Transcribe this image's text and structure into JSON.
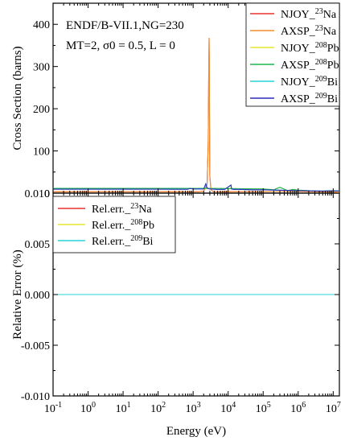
{
  "chart_data": [
    {
      "type": "line",
      "annotation_lines": [
        "ENDF/B-VII.1,NG=230",
        "MT=2, σ0 = 0.5, L = 0"
      ],
      "ylabel": "Cross Section (barns)",
      "ylim": [
        0,
        450
      ],
      "yticks": [
        "0",
        "100",
        "200",
        "300",
        "400"
      ],
      "x_scale": "log",
      "xlim": [
        0.1,
        15000000
      ],
      "grid": false,
      "legend_position": "top-right",
      "series": [
        {
          "name": "NJOY_23Na",
          "label_main": "NJOY_",
          "label_sup": "23",
          "label_tail": "Na",
          "color": "#e8302e",
          "x": [
            0.1,
            1,
            10,
            100,
            1000,
            1500,
            2000,
            2500,
            2700,
            2800,
            2850,
            2900,
            2950,
            3000,
            3200,
            3500,
            4000,
            6000,
            10000,
            30000,
            100000,
            300000,
            1000000,
            3000000,
            10000000,
            15000000
          ],
          "y": [
            3.2,
            3.2,
            3.2,
            3.2,
            3.3,
            3.5,
            5,
            20,
            120,
            300,
            368,
            300,
            150,
            40,
            10,
            5,
            3.4,
            3.3,
            3.4,
            3.5,
            3.6,
            3.8,
            4,
            3.5,
            2.5,
            2
          ]
        },
        {
          "name": "AXSP_23Na",
          "label_main": "AXSP_",
          "label_sup": "23",
          "label_tail": "Na",
          "color": "#f28e2b",
          "x": [
            0.1,
            1,
            10,
            100,
            1000,
            1500,
            2000,
            2500,
            2700,
            2800,
            2850,
            2900,
            2950,
            3000,
            3200,
            3500,
            4000,
            6000,
            10000,
            30000,
            100000,
            300000,
            1000000,
            3000000,
            10000000,
            15000000
          ],
          "y": [
            3.2,
            3.2,
            3.2,
            3.2,
            3.3,
            3.5,
            5,
            20,
            120,
            300,
            368,
            300,
            150,
            40,
            10,
            5,
            3.4,
            3.3,
            3.4,
            3.5,
            3.6,
            3.8,
            4,
            3.5,
            2.5,
            2
          ]
        },
        {
          "name": "NJOY_208Pb",
          "label_main": "NJOY_",
          "label_sup": "208",
          "label_tail": "Pb",
          "color": "#e6e62e",
          "x": [
            0.1,
            1,
            10,
            100,
            1000,
            2000,
            3000,
            5000,
            10000,
            30000,
            100000,
            200000,
            300000,
            500000,
            700000,
            1000000,
            2000000,
            3000000,
            5000000,
            10000000,
            15000000
          ],
          "y": [
            11.4,
            11.4,
            11.4,
            11.4,
            11.3,
            11.2,
            11,
            11,
            10.9,
            10.5,
            10,
            8,
            14,
            6,
            9,
            7,
            6,
            5,
            4.8,
            5.5,
            5
          ]
        },
        {
          "name": "AXSP_208Pb",
          "label_main": "AXSP_",
          "label_sup": "208",
          "label_tail": "Pb",
          "color": "#1fb84b",
          "x": [
            0.1,
            1,
            10,
            100,
            1000,
            2000,
            3000,
            5000,
            10000,
            30000,
            100000,
            200000,
            300000,
            500000,
            700000,
            1000000,
            2000000,
            3000000,
            5000000,
            10000000,
            15000000
          ],
          "y": [
            11.4,
            11.4,
            11.4,
            11.4,
            11.3,
            11.2,
            11,
            11,
            10.9,
            10.5,
            10,
            8,
            14,
            6,
            9,
            7,
            6,
            5,
            4.8,
            5.5,
            5
          ]
        },
        {
          "name": "NJOY_209Bi",
          "label_main": "NJOY_",
          "label_sup": "209",
          "label_tail": "Bi",
          "color": "#27d3d9",
          "x": [
            0.1,
            1,
            10,
            100,
            700,
            800,
            1000,
            2000,
            2300,
            2500,
            3000,
            5000,
            8000,
            12000,
            12500,
            14000,
            20000,
            50000,
            100000,
            1000000,
            5000000,
            10000000,
            15000000
          ],
          "y": [
            9.3,
            9.3,
            9.3,
            9.3,
            9.2,
            11,
            10,
            10,
            22,
            12,
            10,
            9,
            9,
            19,
            10,
            9,
            9,
            8,
            8,
            6,
            5,
            5.5,
            5.2
          ]
        },
        {
          "name": "AXSP_209Bi",
          "label_main": "AXSP_",
          "label_sup": "209",
          "label_tail": "Bi",
          "color": "#2d2dbe",
          "x": [
            0.1,
            1,
            10,
            100,
            700,
            800,
            1000,
            2000,
            2300,
            2500,
            3000,
            5000,
            8000,
            12000,
            12500,
            14000,
            20000,
            50000,
            100000,
            1000000,
            5000000,
            10000000,
            15000000
          ],
          "y": [
            9.3,
            9.3,
            9.3,
            9.3,
            9.2,
            11,
            10,
            10,
            22,
            12,
            10,
            9,
            9,
            19,
            10,
            9,
            9,
            8,
            8,
            6,
            5,
            5.5,
            5.2
          ]
        }
      ]
    },
    {
      "type": "line",
      "xlabel": "Energy (eV)",
      "ylabel": "Relative Error (%)",
      "ylim": [
        -0.01,
        0.01
      ],
      "yticks": [
        "-0.010",
        "-0.005",
        "0.000",
        "0.005",
        "0.010"
      ],
      "x_scale": "log",
      "xlim": [
        0.1,
        15000000
      ],
      "xticks": [
        {
          "base": "10",
          "exp": "-1"
        },
        {
          "base": "10",
          "exp": "0"
        },
        {
          "base": "10",
          "exp": "1"
        },
        {
          "base": "10",
          "exp": "2"
        },
        {
          "base": "10",
          "exp": "3"
        },
        {
          "base": "10",
          "exp": "4"
        },
        {
          "base": "10",
          "exp": "5"
        },
        {
          "base": "10",
          "exp": "6"
        },
        {
          "base": "10",
          "exp": "7"
        }
      ],
      "grid": false,
      "legend_position": "top-left",
      "series": [
        {
          "name": "Rel.err._23Na",
          "label_main": "Rel.err._",
          "label_sup": "23",
          "label_tail": "Na",
          "color": "#e8302e",
          "x": [
            0.1,
            1,
            10,
            100,
            1000,
            10000,
            100000,
            1000000,
            10000000,
            15000000
          ],
          "y": [
            0,
            0,
            0,
            0,
            0,
            0,
            0,
            0,
            0,
            0
          ]
        },
        {
          "name": "Rel.err._208Pb",
          "label_main": "Rel.err._",
          "label_sup": "208",
          "label_tail": "Pb",
          "color": "#e6e62e",
          "x": [
            0.1,
            1,
            10,
            100,
            1000,
            10000,
            100000,
            1000000,
            10000000,
            15000000
          ],
          "y": [
            0,
            0,
            0,
            0,
            0,
            0,
            0,
            0,
            0,
            0
          ]
        },
        {
          "name": "Rel.err._209Bi",
          "label_main": "Rel.err._",
          "label_sup": "209",
          "label_tail": "Bi",
          "color": "#27d3d9",
          "x": [
            0.1,
            1,
            10,
            100,
            1000,
            10000,
            100000,
            1000000,
            10000000,
            15000000
          ],
          "y": [
            0,
            0,
            0,
            0,
            0,
            0,
            0,
            0,
            0,
            0
          ]
        }
      ]
    }
  ]
}
